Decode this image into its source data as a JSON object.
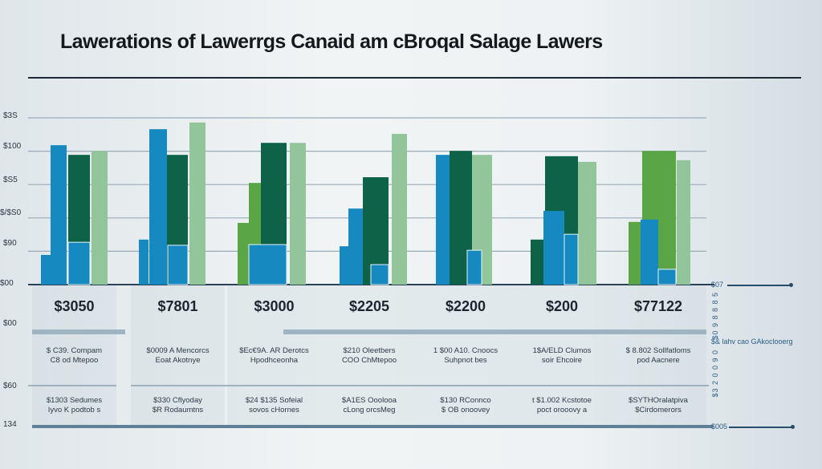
{
  "title": "Lawerations of Lawerrgs Canaid am cBroqal Salage Lawers",
  "chart_data": {
    "type": "bar",
    "title": "Lawerations of Lawerrgs Canaid am cBroqal Salage Lawers",
    "y_tick_labels": [
      "$00",
      "$90",
      "$/$S0",
      "$S5",
      "$100",
      "$3S"
    ],
    "ylim": [
      0,
      5
    ],
    "grid": true,
    "colors": {
      "blue": "#1589c0",
      "dark_green": "#0d6248",
      "light_green": "#93c59a",
      "green": "#5aa545"
    },
    "groups": [
      {
        "bars": [
          {
            "c": "blue",
            "v": 0.89
          },
          {
            "c": "blue",
            "v": 4.18
          },
          {
            "c": "dark_green",
            "v": 3.89
          },
          {
            "c": "blue",
            "v": 1.27
          },
          {
            "c": "light_green",
            "v": 4.01
          }
        ]
      },
      {
        "bars": [
          {
            "c": "blue",
            "v": 1.35
          },
          {
            "c": "blue",
            "v": 4.66
          },
          {
            "c": "dark_green",
            "v": 3.89
          },
          {
            "c": "blue",
            "v": 1.18
          },
          {
            "c": "light_green",
            "v": 4.86
          }
        ]
      },
      {
        "bars": [
          {
            "c": "green",
            "v": 1.85
          },
          {
            "c": "green",
            "v": 3.05
          },
          {
            "c": "dark_green",
            "v": 4.25
          },
          {
            "c": "blue",
            "v": 1.2
          },
          {
            "c": "light_green",
            "v": 4.25
          }
        ]
      },
      {
        "bars": [
          {
            "c": "blue",
            "v": 1.15
          },
          {
            "c": "blue",
            "v": 2.28
          },
          {
            "c": "dark_green",
            "v": 3.22
          },
          {
            "c": "blue",
            "v": 0.6
          },
          {
            "c": "light_green",
            "v": 4.52
          }
        ]
      },
      {
        "bars": [
          {
            "c": "blue",
            "v": 3.89
          },
          {
            "c": "dark_green",
            "v": 4.01
          },
          {
            "c": "blue",
            "v": 1.66
          },
          {
            "c": "blue",
            "v": 1.03
          },
          {
            "c": "light_green",
            "v": 3.89
          }
        ]
      },
      {
        "bars": [
          {
            "c": "dark_green",
            "v": 1.35
          },
          {
            "c": "blue",
            "v": 2.21
          },
          {
            "c": "dark_green",
            "v": 3.85
          },
          {
            "c": "blue",
            "v": 1.51
          },
          {
            "c": "light_green",
            "v": 3.68
          }
        ]
      },
      {
        "bars": [
          {
            "c": "green",
            "v": 1.88
          },
          {
            "c": "blue",
            "v": 1.95
          },
          {
            "c": "green",
            "v": 4.01
          },
          {
            "c": "blue",
            "v": 0.46
          },
          {
            "c": "light_green",
            "v": 3.73
          }
        ]
      }
    ]
  },
  "table": {
    "left_labels": [
      "$00",
      "$60",
      "134"
    ],
    "columns": [
      {
        "value": "$3050",
        "row2": [
          "$ C39. Compam",
          "C8 od Mtepoo"
        ],
        "row3": [
          "$1303 Sedumes",
          "Iyvo K podtob s"
        ]
      },
      {
        "value": "$7801",
        "row2": [
          "$0009 A Mencorcs",
          "Eoat Akotnye"
        ],
        "row3": [
          "$330 Cflyoday",
          "$R Rodaumtns"
        ]
      },
      {
        "value": "$3000",
        "row2": [
          "$Ec€9A. AR Derotcs",
          "Hpodhceonha"
        ],
        "row3": [
          "$24 $135 Sofeial",
          "sovos cHornes"
        ]
      },
      {
        "value": "$2205",
        "row2": [
          "$210 Oleetbers",
          "COO ChMtepoo"
        ],
        "row3": [
          "$A1ES Ooolooa",
          "cLong orcsMeg"
        ]
      },
      {
        "value": "$2200",
        "row2": [
          "1 $00 A10. Cnoocs",
          "Suhpnot bes"
        ],
        "row3": [
          "$130 RConnco",
          "$ OB onoovey"
        ]
      },
      {
        "value": "$200",
        "row2": [
          "1$A/ELD Clumos",
          "soir Ehcoire"
        ],
        "row3": [
          "t $1.002 Kcstotoe",
          "poct orooovy a"
        ]
      },
      {
        "value": "$77122",
        "row2": [
          "$ 8.802 Sollfatloms",
          "pod Aacnere"
        ],
        "row3": [
          "$SYTHOralatpiva",
          "$Cirdomerors"
        ]
      }
    ]
  },
  "right": {
    "top_label": "$07",
    "vertical_1": "$0 9 8 8 8 5",
    "mid_label": "$& lahv cao GAkoclooerg",
    "vertical_2": "$3 2 0 0 9 0",
    "bottom_label": "$005"
  }
}
